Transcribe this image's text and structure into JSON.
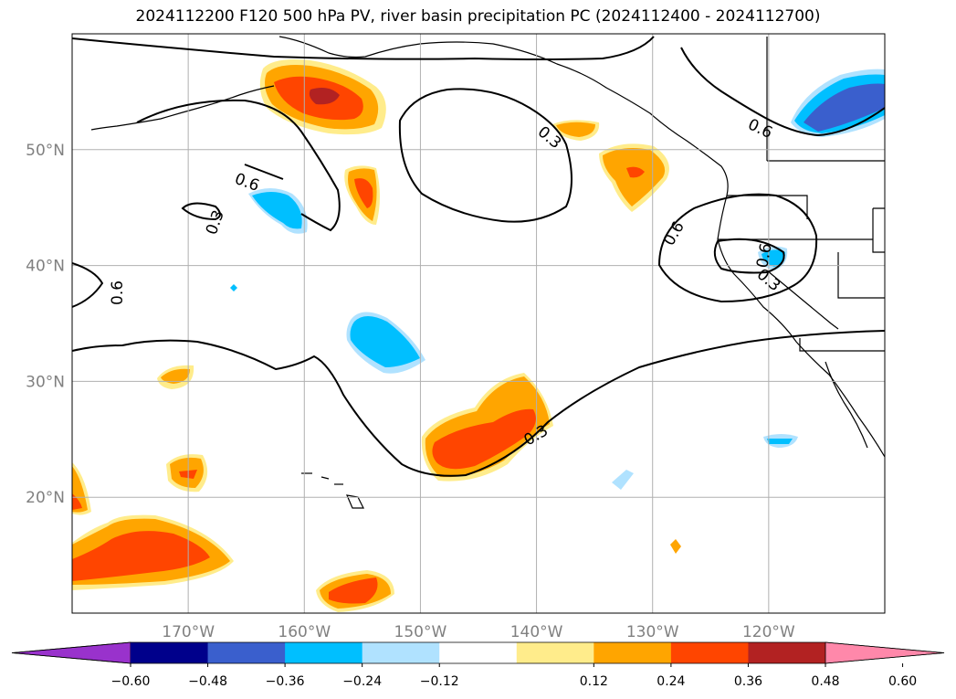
{
  "title": "2024112200 F120 500 hPa PV, river basin precipitation PC (2024112400 - 2024112700)",
  "map": {
    "lon_range": [
      -180,
      -110
    ],
    "lat_range": [
      10,
      60
    ],
    "lon_ticks": [
      {
        "value": -170,
        "label": "170°W"
      },
      {
        "value": -160,
        "label": "160°W"
      },
      {
        "value": -150,
        "label": "150°W"
      },
      {
        "value": -140,
        "label": "140°W"
      },
      {
        "value": -130,
        "label": "130°W"
      },
      {
        "value": -120,
        "label": "120°W"
      }
    ],
    "lat_ticks": [
      {
        "value": 20,
        "label": "20°N"
      },
      {
        "value": 30,
        "label": "30°N"
      },
      {
        "value": 40,
        "label": "40°N"
      },
      {
        "value": 50,
        "label": "50°N"
      }
    ],
    "gridlines": true,
    "contour_labels": [
      "0.6",
      "0.3",
      "0.6",
      "0.3",
      "0.6",
      "0.6",
      "0.3",
      "0.3",
      "0.6",
      "0.6"
    ]
  },
  "colorbar": {
    "levels": [
      "−0.60",
      "−0.48",
      "−0.36",
      "−0.24",
      "−0.12",
      "0.12",
      "0.24",
      "0.36",
      "0.48",
      "0.60"
    ],
    "colors": [
      "#9932cc",
      "#00008b",
      "#3a5fcd",
      "#00bfff",
      "#b0e2ff",
      "#ffffff",
      "#ffec8b",
      "#ffa500",
      "#ff4500",
      "#b22222",
      "#ff88aa"
    ],
    "extend": "both"
  },
  "colors": {
    "yellow": "#ffec8b",
    "orange": "#ffa500",
    "red": "#ff4500",
    "darkred": "#b22222",
    "lightblue": "#b0e2ff",
    "cyan": "#00bfff",
    "blue": "#3a5fcd",
    "grid": "#b0b0b0",
    "ticklabel": "#808080"
  }
}
